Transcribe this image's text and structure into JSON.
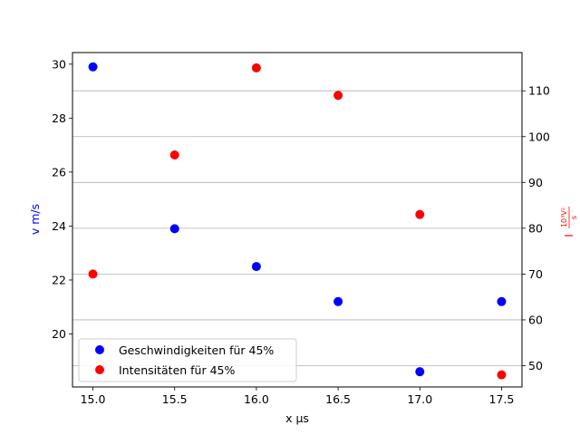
{
  "chart_data": {
    "type": "scatter",
    "xlabel": "x μs",
    "ylabel_left": "v m/s",
    "ylabel_right": "I 10³V²/s",
    "ylabel_right_parts": {
      "prefix": "I",
      "numerator": "10³V²",
      "denominator": "s"
    },
    "xlim": [
      14.875,
      17.625
    ],
    "ylim_left": [
      18.035,
      30.43
    ],
    "ylim_right": [
      45.35,
      118.35
    ],
    "xticks": [
      15.0,
      15.5,
      16.0,
      16.5,
      17.0,
      17.5
    ],
    "xtick_labels": [
      "15.0",
      "15.5",
      "16.0",
      "16.5",
      "17.0",
      "17.5"
    ],
    "yticks_left": [
      20,
      22,
      24,
      26,
      28,
      30
    ],
    "ytick_labels_left": [
      "20",
      "22",
      "24",
      "26",
      "28",
      "30"
    ],
    "yticks_right": [
      50,
      60,
      70,
      80,
      90,
      100,
      110
    ],
    "ytick_labels_right": [
      "50",
      "60",
      "70",
      "80",
      "90",
      "100",
      "110"
    ],
    "grid": "horizontal lines at right-axis ticks",
    "legend_position": "lower-left",
    "series": [
      {
        "name": "Geschwindigkeiten für 45%",
        "axis": "left",
        "color": "#0000ff",
        "x": [
          15.0,
          15.5,
          16.0,
          16.5,
          17.0,
          17.5
        ],
        "y": [
          29.9,
          23.9,
          22.5,
          21.2,
          18.6,
          21.2
        ]
      },
      {
        "name": "Intensitäten für 45%",
        "axis": "right",
        "color": "#ff0000",
        "x": [
          15.0,
          15.5,
          16.0,
          16.5,
          17.0,
          17.5
        ],
        "y": [
          70,
          96,
          115,
          109,
          83,
          48
        ]
      }
    ]
  }
}
